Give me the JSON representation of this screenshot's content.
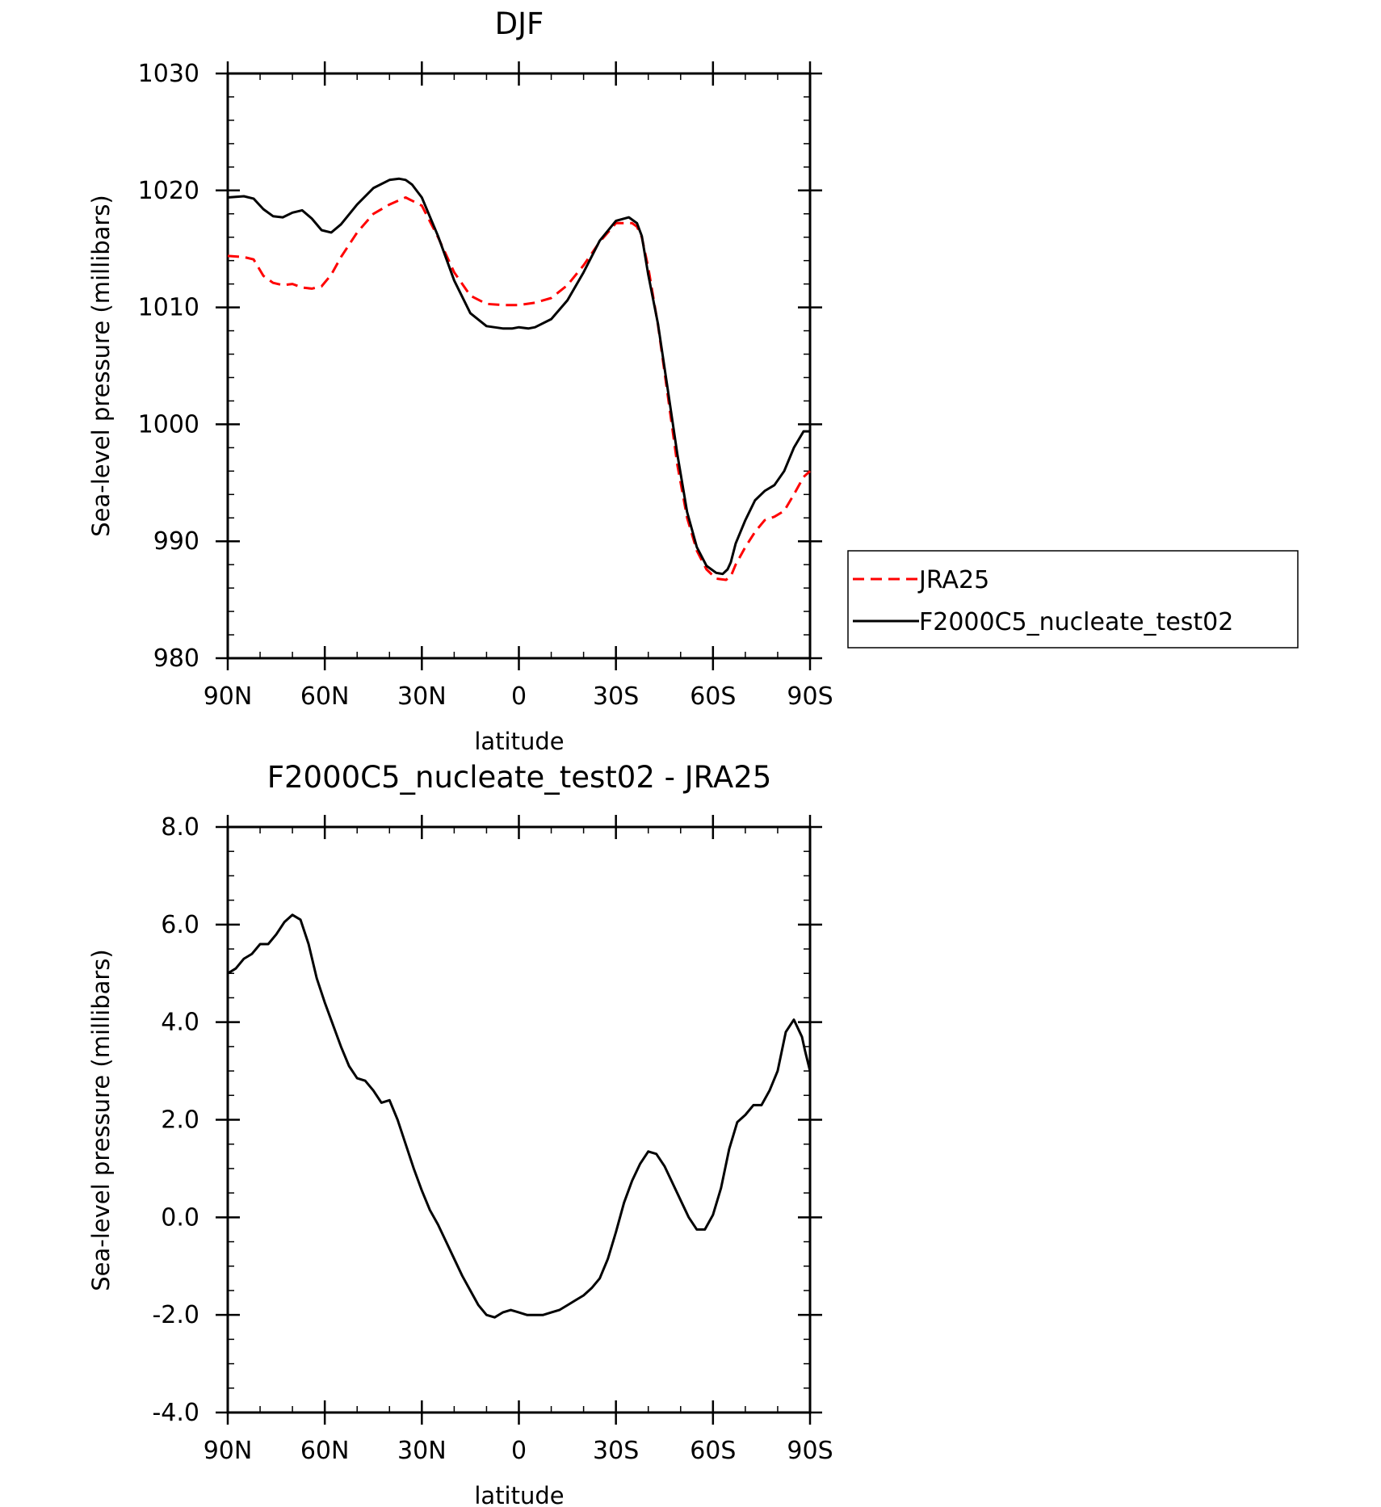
{
  "chart_data": [
    {
      "type": "line",
      "title": "DJF",
      "xlabel": "latitude",
      "ylabel": "Sea-level pressure (millibars)",
      "xlim": [
        90,
        -90
      ],
      "ylim": [
        980,
        1030
      ],
      "yticks": [
        "980",
        "990",
        "1000",
        "1010",
        "1020",
        "1030"
      ],
      "xticks": [
        "90N",
        "60N",
        "30N",
        "0",
        "30S",
        "60S",
        "90S"
      ],
      "legend": {
        "placement": "right"
      },
      "series": [
        {
          "name": "JRA25",
          "color": "#ff0000",
          "dash": true,
          "x": [
            90,
            85,
            82,
            79,
            76,
            73,
            70,
            67,
            64,
            61,
            58,
            55,
            50,
            45,
            40,
            35,
            30,
            25,
            20,
            15,
            10,
            5,
            0,
            -5,
            -10,
            -15,
            -20,
            -25,
            -30,
            -35,
            -36.5,
            -38,
            -40,
            -43,
            -46,
            -49,
            -52,
            -55,
            -58,
            -61,
            -64,
            -65.5,
            -67,
            -70,
            -73,
            -76,
            -79,
            -82,
            -85,
            -88,
            -90
          ],
          "y": [
            1014.4,
            1014.3,
            1014.1,
            1012.7,
            1012.1,
            1011.9,
            1012.0,
            1011.7,
            1011.6,
            1011.8,
            1012.8,
            1014.3,
            1016.4,
            1018.0,
            1018.8,
            1019.4,
            1018.7,
            1016.0,
            1013.0,
            1011.0,
            1010.3,
            1010.2,
            1010.2,
            1010.4,
            1010.8,
            1011.9,
            1013.6,
            1015.6,
            1017.2,
            1017.2,
            1016.9,
            1016.0,
            1013.4,
            1008.5,
            1002.5,
            996.5,
            992.0,
            989.2,
            987.6,
            986.8,
            986.7,
            987.0,
            988.0,
            989.5,
            990.8,
            991.8,
            992.1,
            992.6,
            994.0,
            995.5,
            996.0
          ]
        },
        {
          "name": "F2000C5_nucleate_test02",
          "color": "#000000",
          "dash": false,
          "x": [
            90,
            85,
            82,
            79,
            76,
            73,
            70,
            67,
            64,
            61,
            58,
            55,
            50,
            45,
            40,
            37,
            35,
            33,
            30,
            25,
            20,
            15,
            10,
            5,
            2,
            0,
            -3,
            -5,
            -10,
            -15,
            -20,
            -25,
            -30,
            -34,
            -36.5,
            -38,
            -40,
            -43,
            -46,
            -49,
            -52,
            -55,
            -58,
            -61,
            -63,
            -64.5,
            -65.5,
            -67,
            -70,
            -73,
            -76,
            -79,
            -82,
            -85,
            -88,
            -90
          ],
          "y": [
            1019.4,
            1019.5,
            1019.3,
            1018.4,
            1017.8,
            1017.7,
            1018.1,
            1018.3,
            1017.6,
            1016.6,
            1016.4,
            1017.1,
            1018.8,
            1020.2,
            1020.9,
            1021.0,
            1020.9,
            1020.5,
            1019.4,
            1016.1,
            1012.3,
            1009.5,
            1008.4,
            1008.2,
            1008.2,
            1008.3,
            1008.2,
            1008.3,
            1009.0,
            1010.6,
            1013.0,
            1015.7,
            1017.4,
            1017.7,
            1017.2,
            1016.1,
            1012.8,
            1008.6,
            1003.0,
            997.4,
            992.5,
            989.5,
            987.9,
            987.3,
            987.2,
            987.6,
            988.2,
            989.8,
            991.8,
            993.5,
            994.3,
            994.8,
            996.0,
            998.0,
            999.4,
            999.4
          ]
        }
      ]
    },
    {
      "type": "line",
      "title": "F2000C5_nucleate_test02 - JRA25",
      "xlabel": "latitude",
      "ylabel": "Sea-level pressure (millibars)",
      "xlim": [
        90,
        -90
      ],
      "ylim": [
        -4.0,
        8.0
      ],
      "yticks": [
        "-4.0",
        "-2.0",
        "0.0",
        "2.0",
        "4.0",
        "6.0",
        "8.0"
      ],
      "xticks": [
        "90N",
        "60N",
        "30N",
        "0",
        "30S",
        "60S",
        "90S"
      ],
      "series": [
        {
          "name": "",
          "color": "#000000",
          "dash": false,
          "x": [
            90,
            87.5,
            85,
            82.5,
            80,
            77.5,
            75,
            72.5,
            70,
            67.5,
            65,
            62.5,
            60,
            57.5,
            55,
            52.5,
            50,
            47.5,
            45,
            42.5,
            40,
            37.5,
            35,
            32.5,
            30,
            27.5,
            25,
            22.5,
            20,
            17.5,
            15,
            12.5,
            10,
            7.5,
            5,
            2.5,
            0,
            -2.5,
            -5,
            -7.5,
            -10,
            -12.5,
            -15,
            -17.5,
            -20,
            -22.5,
            -25,
            -27.5,
            -30,
            -32.5,
            -35,
            -37.5,
            -40,
            -42.5,
            -45,
            -47.5,
            -50,
            -52.5,
            -55,
            -57.5,
            -60,
            -62.5,
            -65,
            -67.5,
            -70,
            -72.5,
            -75,
            -77.5,
            -80,
            -82.5,
            -85,
            -87.5,
            -88.5,
            -90
          ],
          "y": [
            5.0,
            5.1,
            5.3,
            5.4,
            5.6,
            5.6,
            5.8,
            6.05,
            6.2,
            6.1,
            5.6,
            4.9,
            4.4,
            3.95,
            3.5,
            3.1,
            2.85,
            2.8,
            2.6,
            2.35,
            2.4,
            2.0,
            1.5,
            1.0,
            0.55,
            0.15,
            -0.15,
            -0.5,
            -0.85,
            -1.2,
            -1.5,
            -1.8,
            -2.0,
            -2.05,
            -1.95,
            -1.9,
            -1.95,
            -2.0,
            -2.0,
            -2.0,
            -1.95,
            -1.9,
            -1.8,
            -1.7,
            -1.6,
            -1.45,
            -1.25,
            -0.85,
            -0.3,
            0.3,
            0.75,
            1.1,
            1.35,
            1.3,
            1.05,
            0.7,
            0.35,
            0.0,
            -0.25,
            -0.25,
            0.05,
            0.6,
            1.4,
            1.95,
            2.1,
            2.3,
            2.3,
            2.6,
            3.0,
            3.8,
            4.05,
            3.7,
            3.4,
            3.0
          ]
        }
      ]
    }
  ]
}
